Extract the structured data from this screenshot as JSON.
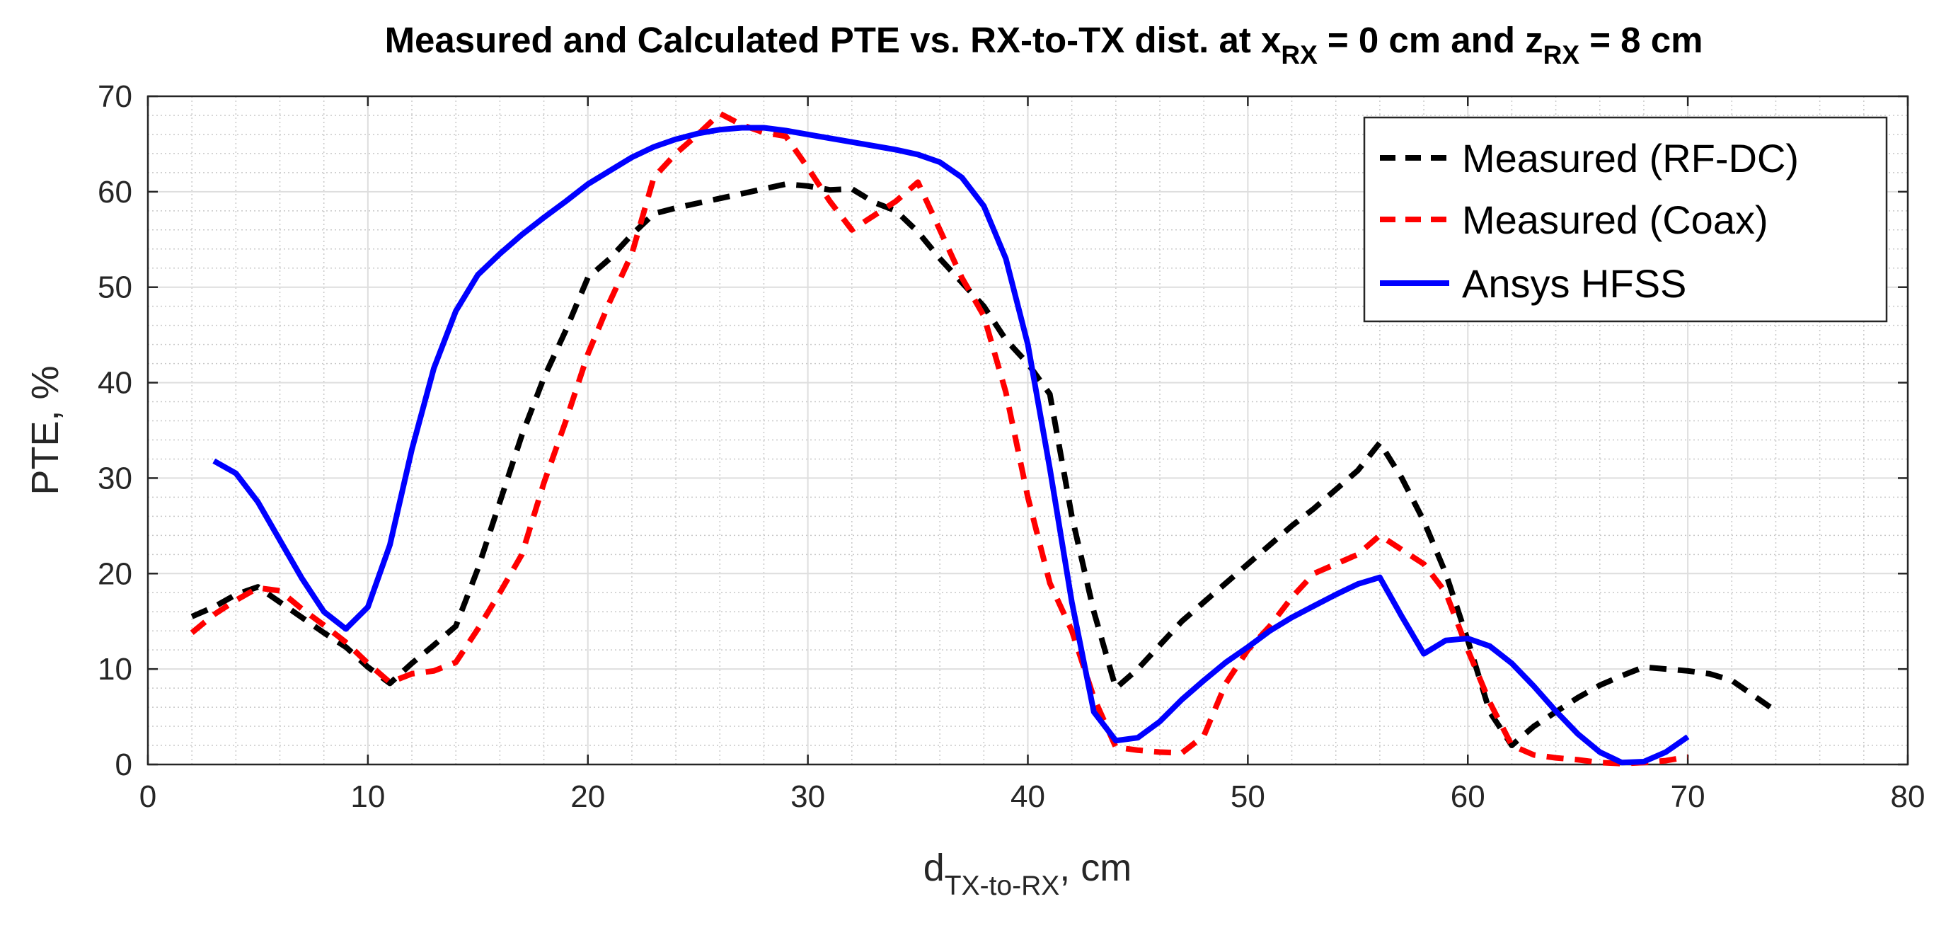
{
  "chart_data": {
    "type": "line",
    "title": "Measured and Calculated PTE vs. RX-to-TX dist. at x_RX = 0 cm and z_RX = 8 cm",
    "title_parts": {
      "main": "Measured and Calculated PTE vs. RX-to-TX dist. at x",
      "sub1": "RX",
      "mid": " = 0 cm and z",
      "sub2": "RX",
      "end": " = 8 cm"
    },
    "xlabel": "d_TX-to-RX, cm",
    "xlabel_parts": {
      "main": "d",
      "sub": "TX-to-RX",
      "end": ", cm"
    },
    "ylabel": "PTE, %",
    "xlim": [
      0,
      80
    ],
    "ylim": [
      0,
      70
    ],
    "xticks": [
      0,
      10,
      20,
      30,
      40,
      50,
      60,
      70,
      80
    ],
    "yticks": [
      0,
      10,
      20,
      30,
      40,
      50,
      60,
      70
    ],
    "grid": true,
    "minor_grid": true,
    "legend_position": "top-right",
    "series": [
      {
        "name": "Measured (RF-DC)",
        "color": "#000000",
        "style": "dashed",
        "x": [
          2,
          3,
          4,
          5,
          6,
          7,
          8,
          9,
          10,
          11,
          12,
          13,
          14,
          15,
          16,
          17,
          18,
          19,
          20,
          21,
          22,
          23,
          24,
          25,
          26,
          27,
          28,
          29,
          30,
          31,
          32,
          33,
          34,
          35,
          36,
          37,
          38,
          39,
          40,
          41,
          42,
          43,
          44,
          45,
          46,
          47,
          48,
          49,
          50,
          51,
          52,
          53,
          54,
          55,
          56,
          57,
          58,
          59,
          60,
          61,
          62,
          63,
          64,
          65,
          66,
          67,
          68,
          69,
          70,
          71,
          72,
          73,
          74
        ],
        "y": [
          15.5,
          16.5,
          17.8,
          18.6,
          17.0,
          15.4,
          13.8,
          12.3,
          10.2,
          8.5,
          10.6,
          12.5,
          14.5,
          20.5,
          27.5,
          34.5,
          40.5,
          45.5,
          51.0,
          53.0,
          55.5,
          57.7,
          58.3,
          58.8,
          59.3,
          59.8,
          60.3,
          60.8,
          60.6,
          60.2,
          60.3,
          58.9,
          58.0,
          55.8,
          53.0,
          50.5,
          48.0,
          44.5,
          42.0,
          38.8,
          26.0,
          16.0,
          8.0,
          10.0,
          12.5,
          15.0,
          17.0,
          19.0,
          21.0,
          23.0,
          25.0,
          26.8,
          28.8,
          30.8,
          33.7,
          30.0,
          25.5,
          20.0,
          13.0,
          5.5,
          2.0,
          4.0,
          5.5,
          7.0,
          8.3,
          9.3,
          10.2,
          10.0,
          9.8,
          9.5,
          8.8,
          7.2,
          5.6
        ]
      },
      {
        "name": "Measured (Coax)",
        "color": "#ff0000",
        "style": "dashed",
        "x": [
          2,
          3,
          4,
          5,
          6,
          7,
          8,
          9,
          10,
          11,
          12,
          13,
          14,
          15,
          16,
          17,
          18,
          19,
          20,
          21,
          22,
          23,
          24,
          25,
          26,
          27,
          28,
          29,
          30,
          31,
          32,
          33,
          34,
          35,
          36,
          37,
          38,
          39,
          40,
          41,
          42,
          43,
          44,
          45,
          46,
          47,
          48,
          49,
          50,
          51,
          52,
          53,
          54,
          55,
          56,
          57,
          58,
          59,
          60,
          61,
          62,
          63,
          64,
          65,
          66,
          67,
          68,
          69,
          70
        ],
        "y": [
          13.8,
          15.7,
          17.2,
          18.5,
          18.2,
          16.3,
          14.6,
          12.8,
          10.6,
          8.6,
          9.5,
          9.8,
          10.7,
          14.2,
          18.0,
          22.0,
          29.5,
          36.0,
          43.0,
          48.5,
          53.5,
          61.5,
          64.0,
          66.0,
          68.2,
          67.0,
          66.2,
          65.8,
          62.5,
          59.0,
          56.0,
          57.5,
          59.0,
          61.0,
          56.0,
          51.0,
          47.0,
          39.0,
          28.0,
          19.0,
          14.0,
          7.0,
          1.8,
          1.5,
          1.3,
          1.2,
          3.0,
          8.5,
          12.0,
          14.5,
          17.5,
          20.0,
          21.0,
          22.0,
          24.0,
          22.5,
          21.0,
          18.0,
          12.0,
          6.5,
          2.0,
          1.0,
          0.7,
          0.5,
          0.2,
          0.1,
          0.2,
          0.4,
          0.8
        ]
      },
      {
        "name": "Ansys HFSS",
        "color": "#0000ff",
        "style": "solid",
        "x": [
          3,
          4,
          5,
          6,
          7,
          8,
          9,
          10,
          11,
          12,
          13,
          14,
          15,
          16,
          17,
          18,
          19,
          20,
          21,
          22,
          23,
          24,
          25,
          26,
          27,
          28,
          29,
          30,
          31,
          32,
          33,
          34,
          35,
          36,
          37,
          38,
          39,
          40,
          41,
          42,
          43,
          44,
          45,
          46,
          47,
          48,
          49,
          50,
          51,
          52,
          53,
          54,
          55,
          56,
          57,
          58,
          59,
          60,
          61,
          62,
          63,
          64,
          65,
          66,
          67,
          68,
          69,
          70
        ],
        "y": [
          31.8,
          30.5,
          27.5,
          23.5,
          19.5,
          16.0,
          14.2,
          16.5,
          23.0,
          33.0,
          41.5,
          47.5,
          51.3,
          53.5,
          55.5,
          57.3,
          59.0,
          60.8,
          62.2,
          63.6,
          64.7,
          65.5,
          66.1,
          66.5,
          66.7,
          66.7,
          66.4,
          66.0,
          65.6,
          65.2,
          64.8,
          64.4,
          63.9,
          63.1,
          61.5,
          58.5,
          53.0,
          44.0,
          31.0,
          17.0,
          5.5,
          2.5,
          2.8,
          4.5,
          6.8,
          8.8,
          10.7,
          12.3,
          14.0,
          15.4,
          16.6,
          17.8,
          18.9,
          19.6,
          15.5,
          11.6,
          13.0,
          13.2,
          12.4,
          10.6,
          8.2,
          5.6,
          3.2,
          1.3,
          0.2,
          0.3,
          1.3,
          2.9
        ]
      }
    ]
  }
}
